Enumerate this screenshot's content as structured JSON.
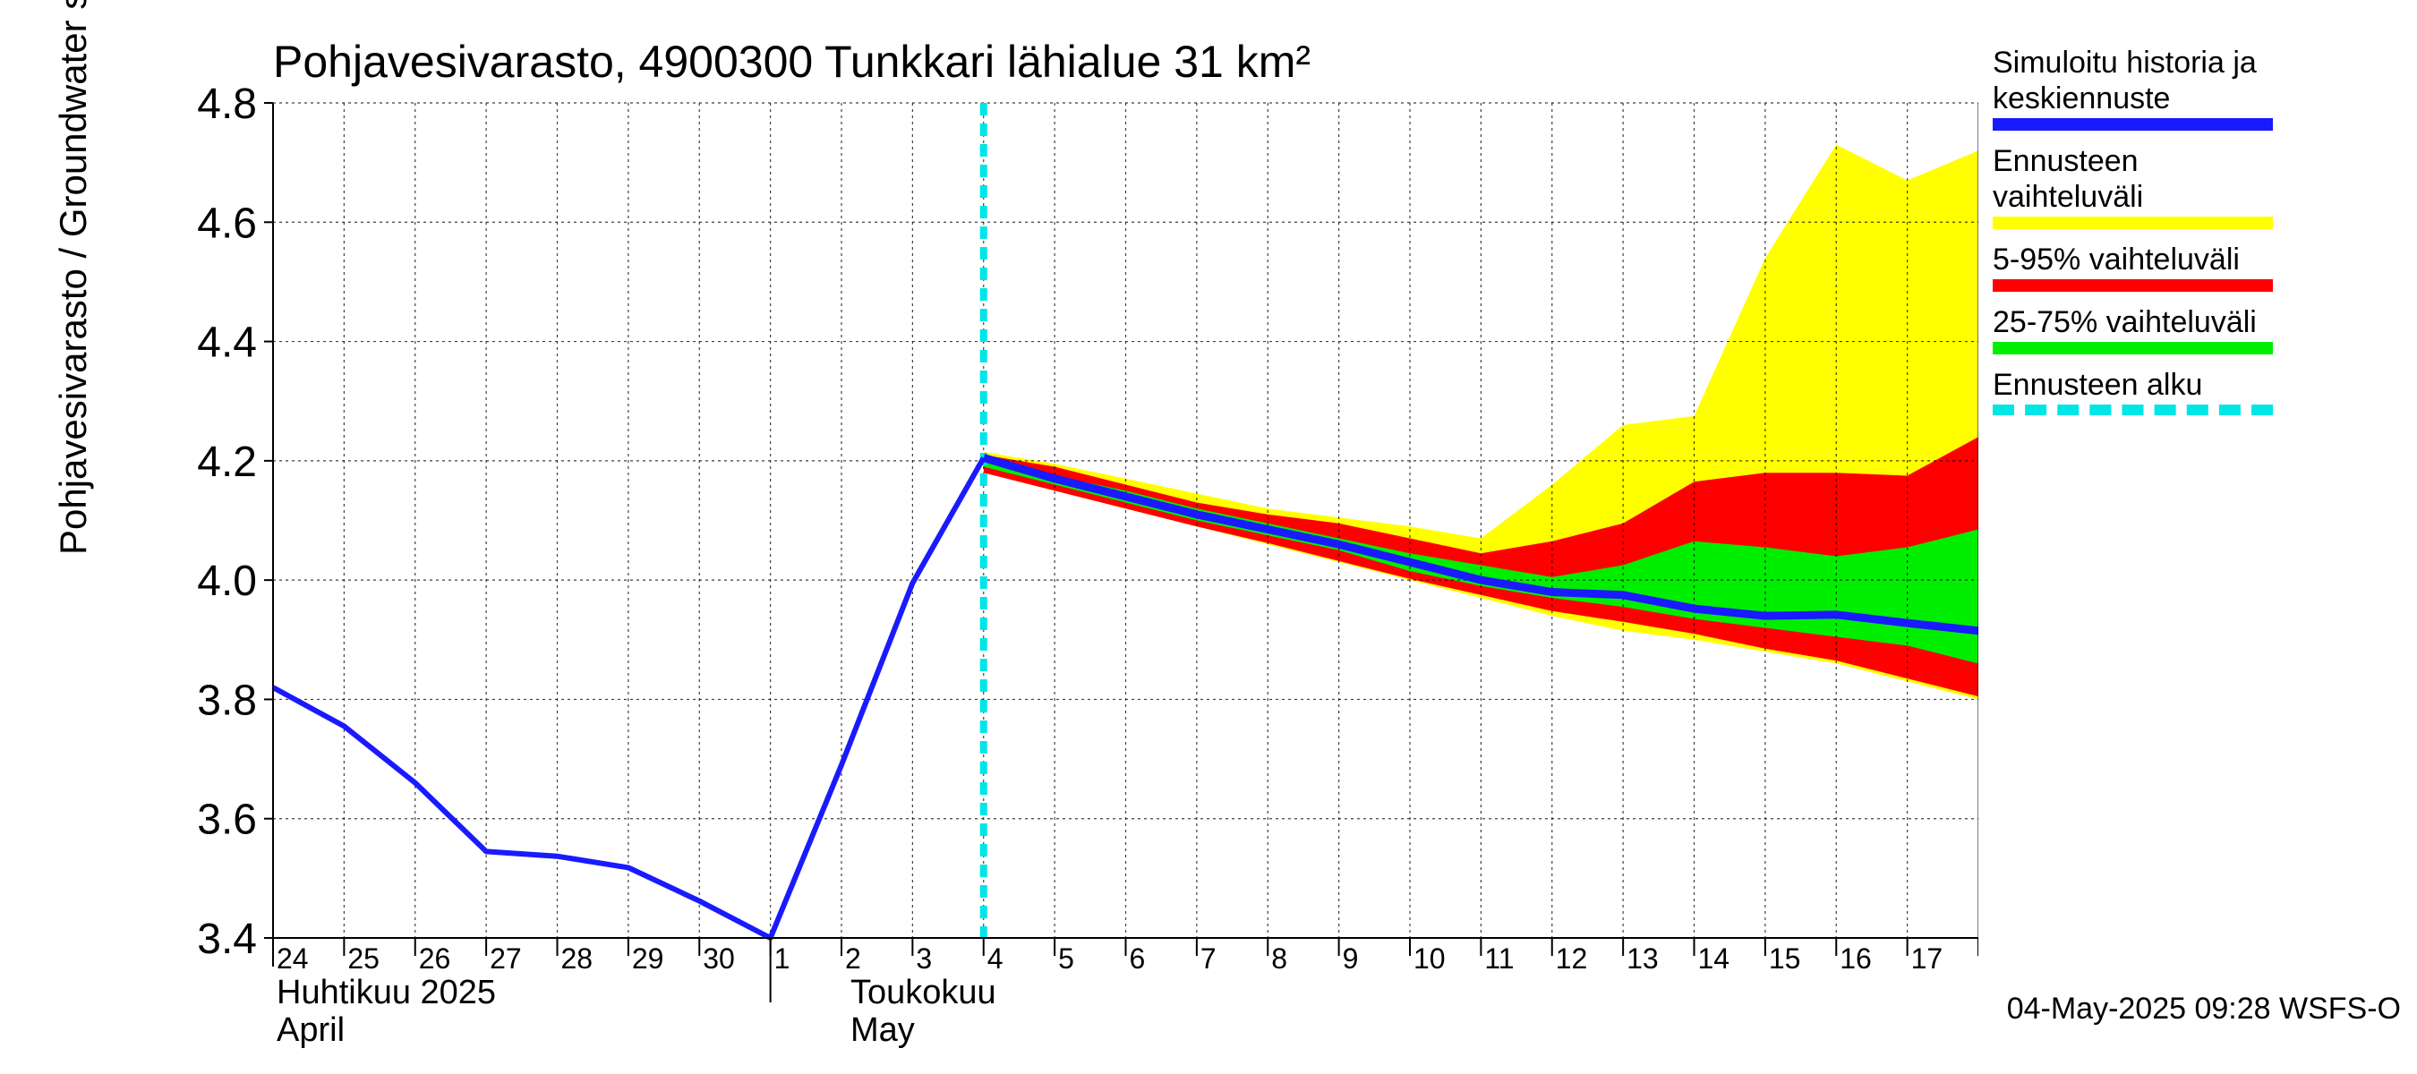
{
  "chart_data": {
    "type": "area",
    "title": "Pohjavesivarasto, 4900300 Tunkkari lähialue 31 km²",
    "ylabel": "Pohjavesivarasto / Groundwater storage   mm",
    "ylim": [
      3.4,
      4.8
    ],
    "yticks": [
      "3.4",
      "3.6",
      "3.8",
      "4.0",
      "4.2",
      "4.4",
      "4.6",
      "4.8"
    ],
    "grid": true,
    "legend_position": "right",
    "x_day_labels": [
      "24",
      "25",
      "26",
      "27",
      "28",
      "29",
      "30",
      "1",
      "2",
      "3",
      "4",
      "5",
      "6",
      "7",
      "8",
      "9",
      "10",
      "11",
      "12",
      "13",
      "14",
      "15",
      "16",
      "17"
    ],
    "month_labels": [
      {
        "line1": "Huhtikuu  2025",
        "line2": "April"
      },
      {
        "line1": "Toukokuu",
        "line2": "May"
      }
    ],
    "forecast_start": "2025-05-04",
    "colors": {
      "history": "#1a1aff",
      "range_full": "#ffff00",
      "range_5_95": "#ff0000",
      "range_25_75": "#00ee00",
      "forecast_start": "#00e5e5"
    },
    "history": {
      "dates": [
        "2025-04-24",
        "2025-04-25",
        "2025-04-26",
        "2025-04-27",
        "2025-04-28",
        "2025-04-29",
        "2025-04-30",
        "2025-05-01",
        "2025-05-02",
        "2025-05-03",
        "2025-05-04"
      ],
      "values": [
        3.82,
        3.755,
        3.66,
        3.545,
        3.537,
        3.518,
        3.462,
        3.4,
        3.69,
        3.995,
        4.205
      ]
    },
    "forecast": {
      "dates": [
        "2025-05-04",
        "2025-05-05",
        "2025-05-06",
        "2025-05-07",
        "2025-05-08",
        "2025-05-09",
        "2025-05-10",
        "2025-05-11",
        "2025-05-12",
        "2025-05-13",
        "2025-05-14",
        "2025-05-15",
        "2025-05-16",
        "2025-05-17",
        "2025-05-18"
      ],
      "median": [
        4.205,
        4.17,
        4.14,
        4.11,
        4.085,
        4.06,
        4.03,
        4.0,
        3.98,
        3.975,
        3.952,
        3.94,
        3.942,
        3.928,
        3.915
      ],
      "full_min": [
        4.18,
        4.15,
        4.12,
        4.09,
        4.06,
        4.03,
        4.0,
        3.97,
        3.94,
        3.915,
        3.9,
        3.88,
        3.86,
        3.83,
        3.8
      ],
      "full_max": [
        4.215,
        4.195,
        4.17,
        4.145,
        4.12,
        4.105,
        4.09,
        4.07,
        4.16,
        4.26,
        4.275,
        4.54,
        4.73,
        4.67,
        4.72
      ],
      "p5": [
        4.18,
        4.15,
        4.12,
        4.09,
        4.062,
        4.032,
        4.002,
        3.975,
        3.948,
        3.93,
        3.91,
        3.885,
        3.865,
        3.835,
        3.805
      ],
      "p95": [
        4.21,
        4.19,
        4.16,
        4.13,
        4.11,
        4.095,
        4.07,
        4.045,
        4.065,
        4.095,
        4.165,
        4.18,
        4.18,
        4.175,
        4.24
      ],
      "p25": [
        4.19,
        4.16,
        4.13,
        4.1,
        4.075,
        4.05,
        4.015,
        3.99,
        3.97,
        3.955,
        3.935,
        3.92,
        3.905,
        3.89,
        3.86
      ],
      "p75": [
        4.2,
        4.175,
        4.15,
        4.12,
        4.095,
        4.07,
        4.045,
        4.025,
        4.005,
        4.025,
        4.065,
        4.055,
        4.04,
        4.055,
        4.085
      ]
    }
  },
  "legend": [
    {
      "label": "Simuloitu historia ja keskiennuste",
      "color": "#1a1aff",
      "style": "solid"
    },
    {
      "label": "Ennusteen vaihteluväli",
      "color": "#ffff00",
      "style": "solid"
    },
    {
      "label": "5-95% vaihteluväli",
      "color": "#ff0000",
      "style": "solid"
    },
    {
      "label": "25-75% vaihteluväli",
      "color": "#00ee00",
      "style": "solid"
    },
    {
      "label": "Ennusteen alku",
      "color": "#00e5e5",
      "style": "dashed"
    }
  ],
  "footer": "04-May-2025 09:28 WSFS-O"
}
